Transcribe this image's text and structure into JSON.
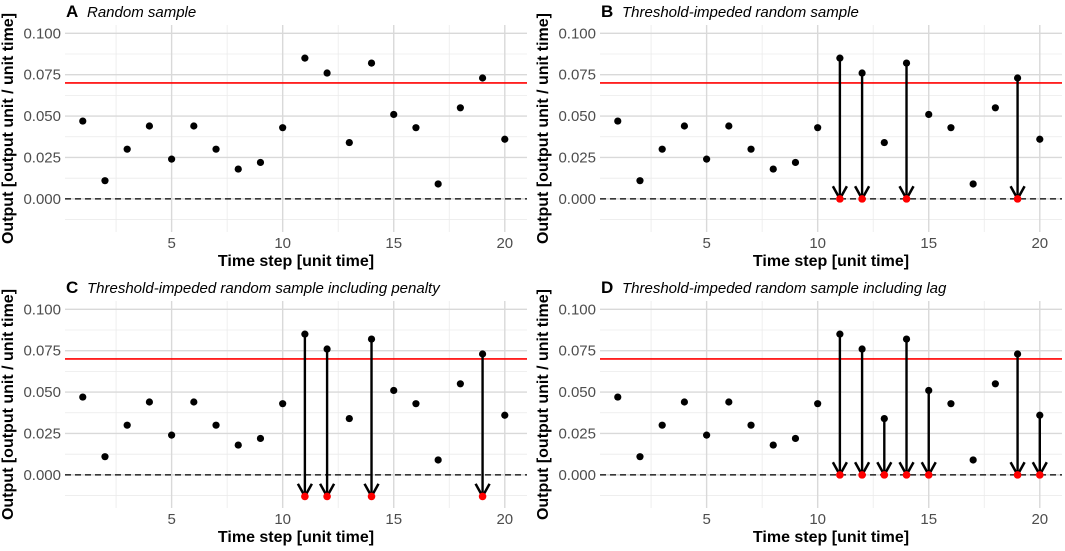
{
  "chart_data": [
    {
      "type": "scatter",
      "panel_label": "A",
      "title": "Random sample",
      "xlabel": "Time step [unit time]",
      "ylabel": "Output [output unit / unit time]",
      "xlim": [
        0.2,
        21.0
      ],
      "ylim": [
        -0.02,
        0.105
      ],
      "x_ticks": [
        5,
        10,
        15,
        20
      ],
      "y_ticks": [
        0.0,
        0.025,
        0.05,
        0.075,
        0.1
      ],
      "y_tick_labels": [
        "0.000",
        "0.025",
        "0.050",
        "0.075",
        "0.100"
      ],
      "threshold": 0.07,
      "threshold_color": "#ff0000",
      "baseline": 0.0,
      "x": [
        1,
        2,
        3,
        4,
        5,
        6,
        7,
        8,
        9,
        10,
        11,
        12,
        13,
        14,
        15,
        16,
        17,
        18,
        19,
        20
      ],
      "y": [
        0.047,
        0.011,
        0.03,
        0.044,
        0.024,
        0.044,
        0.03,
        0.018,
        0.022,
        0.043,
        0.085,
        0.076,
        0.034,
        0.082,
        0.051,
        0.043,
        0.009,
        0.055,
        0.073,
        0.036
      ],
      "arrows": [],
      "end_points": []
    },
    {
      "type": "scatter",
      "panel_label": "B",
      "title": "Threshold-impeded random sample",
      "xlabel": "Time step [unit time]",
      "ylabel": "Output [output unit / unit time]",
      "xlim": [
        0.2,
        21.0
      ],
      "ylim": [
        -0.02,
        0.105
      ],
      "x_ticks": [
        5,
        10,
        15,
        20
      ],
      "y_ticks": [
        0.0,
        0.025,
        0.05,
        0.075,
        0.1
      ],
      "y_tick_labels": [
        "0.000",
        "0.025",
        "0.050",
        "0.075",
        "0.100"
      ],
      "threshold": 0.07,
      "threshold_color": "#ff0000",
      "baseline": 0.0,
      "x": [
        1,
        2,
        3,
        4,
        5,
        6,
        7,
        8,
        9,
        10,
        11,
        12,
        13,
        14,
        15,
        16,
        17,
        18,
        19,
        20
      ],
      "y": [
        0.047,
        0.011,
        0.03,
        0.044,
        0.024,
        0.044,
        0.03,
        0.018,
        0.022,
        0.043,
        0.085,
        0.076,
        0.034,
        0.082,
        0.051,
        0.043,
        0.009,
        0.055,
        0.073,
        0.036
      ],
      "arrows": [
        {
          "x": 11,
          "from": 0.085,
          "to": 0.0
        },
        {
          "x": 12,
          "from": 0.076,
          "to": 0.0
        },
        {
          "x": 14,
          "from": 0.082,
          "to": 0.0
        },
        {
          "x": 19,
          "from": 0.073,
          "to": 0.0
        }
      ],
      "end_points": [
        {
          "x": 11,
          "y": 0.0
        },
        {
          "x": 12,
          "y": 0.0
        },
        {
          "x": 14,
          "y": 0.0
        },
        {
          "x": 19,
          "y": 0.0
        }
      ],
      "end_point_color": "#ff0000"
    },
    {
      "type": "scatter",
      "panel_label": "C",
      "title": "Threshold-impeded random sample including penalty",
      "xlabel": "Time step [unit time]",
      "ylabel": "Output [output unit / unit time]",
      "xlim": [
        0.2,
        21.0
      ],
      "ylim": [
        -0.02,
        0.105
      ],
      "x_ticks": [
        5,
        10,
        15,
        20
      ],
      "y_ticks": [
        0.0,
        0.025,
        0.05,
        0.075,
        0.1
      ],
      "y_tick_labels": [
        "0.000",
        "0.025",
        "0.050",
        "0.075",
        "0.100"
      ],
      "threshold": 0.07,
      "threshold_color": "#ff0000",
      "baseline": 0.0,
      "x": [
        1,
        2,
        3,
        4,
        5,
        6,
        7,
        8,
        9,
        10,
        11,
        12,
        13,
        14,
        15,
        16,
        17,
        18,
        19,
        20
      ],
      "y": [
        0.047,
        0.011,
        0.03,
        0.044,
        0.024,
        0.044,
        0.03,
        0.018,
        0.022,
        0.043,
        0.085,
        0.076,
        0.034,
        0.082,
        0.051,
        0.043,
        0.009,
        0.055,
        0.073,
        0.036
      ],
      "arrows": [
        {
          "x": 11,
          "from": 0.085,
          "to": -0.013
        },
        {
          "x": 12,
          "from": 0.076,
          "to": -0.013
        },
        {
          "x": 14,
          "from": 0.082,
          "to": -0.013
        },
        {
          "x": 19,
          "from": 0.073,
          "to": -0.013
        }
      ],
      "end_points": [
        {
          "x": 11,
          "y": -0.013
        },
        {
          "x": 12,
          "y": -0.013
        },
        {
          "x": 14,
          "y": -0.013
        },
        {
          "x": 19,
          "y": -0.013
        }
      ],
      "end_point_color": "#ff0000"
    },
    {
      "type": "scatter",
      "panel_label": "D",
      "title": "Threshold-impeded random sample including lag",
      "xlabel": "Time step [unit time]",
      "ylabel": "Output [output unit / unit time]",
      "xlim": [
        0.2,
        21.0
      ],
      "ylim": [
        -0.02,
        0.105
      ],
      "x_ticks": [
        5,
        10,
        15,
        20
      ],
      "y_ticks": [
        0.0,
        0.025,
        0.05,
        0.075,
        0.1
      ],
      "y_tick_labels": [
        "0.000",
        "0.025",
        "0.050",
        "0.075",
        "0.100"
      ],
      "threshold": 0.07,
      "threshold_color": "#ff0000",
      "baseline": 0.0,
      "x": [
        1,
        2,
        3,
        4,
        5,
        6,
        7,
        8,
        9,
        10,
        11,
        12,
        13,
        14,
        15,
        16,
        17,
        18,
        19,
        20
      ],
      "y": [
        0.047,
        0.011,
        0.03,
        0.044,
        0.024,
        0.044,
        0.03,
        0.018,
        0.022,
        0.043,
        0.085,
        0.076,
        0.034,
        0.082,
        0.051,
        0.043,
        0.009,
        0.055,
        0.073,
        0.036
      ],
      "arrows": [
        {
          "x": 11,
          "from": 0.085,
          "to": 0.0
        },
        {
          "x": 12,
          "from": 0.076,
          "to": 0.0
        },
        {
          "x": 13,
          "from": 0.034,
          "to": 0.0
        },
        {
          "x": 14,
          "from": 0.082,
          "to": 0.0
        },
        {
          "x": 15,
          "from": 0.051,
          "to": 0.0
        },
        {
          "x": 19,
          "from": 0.073,
          "to": 0.0
        },
        {
          "x": 20,
          "from": 0.036,
          "to": 0.0
        }
      ],
      "end_points": [
        {
          "x": 11,
          "y": 0.0
        },
        {
          "x": 12,
          "y": 0.0
        },
        {
          "x": 13,
          "y": 0.0
        },
        {
          "x": 14,
          "y": 0.0
        },
        {
          "x": 15,
          "y": 0.0
        },
        {
          "x": 19,
          "y": 0.0
        },
        {
          "x": 20,
          "y": 0.0
        }
      ],
      "end_point_color": "#ff0000"
    }
  ]
}
